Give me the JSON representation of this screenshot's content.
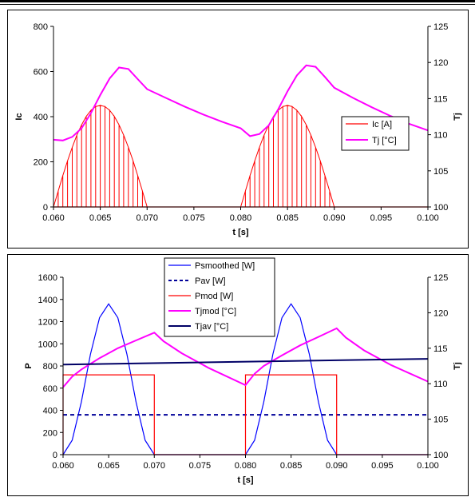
{
  "chart_data": [
    {
      "type": "line",
      "xlabel": "t [s]",
      "ylabel": "Ic",
      "ylabel_right": "Tj",
      "xlim": [
        0.06,
        0.1
      ],
      "ylim": [
        0,
        800
      ],
      "ylim_right": [
        100,
        125
      ],
      "x_ticks": [
        "0.060",
        "0.065",
        "0.070",
        "0.075",
        "0.080",
        "0.085",
        "0.090",
        "0.095",
        "0.100"
      ],
      "y_ticks": [
        "0",
        "200",
        "400",
        "600",
        "800"
      ],
      "y_ticks_right": [
        "100",
        "105",
        "110",
        "115",
        "120",
        "125"
      ],
      "legend": "right",
      "grid": false,
      "series": [
        {
          "name": "Ic [A]",
          "axis": "left",
          "color": "#ff0000",
          "style": "pwm-envelope",
          "conduction_intervals": [
            [
              0.06,
              0.07
            ],
            [
              0.08,
              0.09
            ]
          ],
          "peak_value": 450,
          "pulse_period": 0.0005,
          "x": [
            0.06,
            0.061,
            0.062,
            0.063,
            0.064,
            0.065,
            0.066,
            0.067,
            0.068,
            0.069,
            0.07
          ],
          "values": [
            0,
            140,
            267,
            367,
            431,
            453,
            431,
            367,
            267,
            140,
            0
          ]
        },
        {
          "name": "Tj [°C]",
          "axis": "right",
          "color": "#ff00ff",
          "style": "solid",
          "x": [
            0.06,
            0.061,
            0.062,
            0.063,
            0.064,
            0.065,
            0.066,
            0.067,
            0.068,
            0.069,
            0.07,
            0.072,
            0.074,
            0.076,
            0.078,
            0.08,
            0.081,
            0.082,
            0.083,
            0.084,
            0.085,
            0.086,
            0.087,
            0.088,
            0.089,
            0.09,
            0.092,
            0.094,
            0.096,
            0.098,
            0.1
          ],
          "values": [
            109.3,
            109.2,
            109.7,
            110.9,
            113.0,
            115.5,
            117.8,
            119.3,
            119.1,
            117.7,
            116.3,
            115.1,
            113.9,
            112.8,
            111.8,
            110.9,
            109.8,
            110.1,
            111.3,
            113.5,
            116.0,
            118.2,
            119.6,
            119.4,
            118.0,
            116.5,
            115.1,
            113.8,
            112.6,
            111.5,
            110.6
          ]
        }
      ]
    },
    {
      "type": "line",
      "xlabel": "t [s]",
      "ylabel": "P",
      "ylabel_right": "Tj",
      "xlim": [
        0.06,
        0.1
      ],
      "ylim": [
        0,
        1600
      ],
      "ylim_right": [
        100,
        125
      ],
      "x_ticks": [
        "0.060",
        "0.065",
        "0.070",
        "0.075",
        "0.080",
        "0.085",
        "0.090",
        "0.095",
        "0.100"
      ],
      "y_ticks": [
        "0",
        "200",
        "400",
        "600",
        "800",
        "1000",
        "1200",
        "1400",
        "1600"
      ],
      "y_ticks_right": [
        "100",
        "105",
        "110",
        "115",
        "120",
        "125"
      ],
      "legend": "top-left",
      "grid": false,
      "series": [
        {
          "name": "Psmoothed [W]",
          "axis": "left",
          "color": "#0000ff",
          "style": "solid",
          "x": [
            0.06,
            0.061,
            0.062,
            0.063,
            0.064,
            0.065,
            0.066,
            0.067,
            0.068,
            0.069,
            0.07,
            0.08,
            0.081,
            0.082,
            0.083,
            0.084,
            0.085,
            0.086,
            0.087,
            0.088,
            0.089,
            0.09,
            0.1
          ],
          "values": [
            0,
            130,
            475,
            905,
            1235,
            1360,
            1235,
            905,
            475,
            130,
            0,
            0,
            130,
            475,
            905,
            1235,
            1360,
            1235,
            905,
            475,
            130,
            0,
            0
          ]
        },
        {
          "name": "Pav [W]",
          "axis": "left",
          "color": "#000099",
          "style": "dashed",
          "x": [
            0.06,
            0.1
          ],
          "values": [
            360,
            360
          ]
        },
        {
          "name": "Pmod [W]",
          "axis": "left",
          "color": "#ff0000",
          "style": "solid",
          "x": [
            0.06,
            0.06,
            0.07,
            0.07,
            0.08,
            0.08,
            0.09,
            0.09,
            0.1
          ],
          "values": [
            0,
            720,
            720,
            0,
            0,
            720,
            720,
            0,
            0
          ]
        },
        {
          "name": "Tjmod [°C]",
          "axis": "right",
          "color": "#ff00ff",
          "style": "solid",
          "x": [
            0.06,
            0.061,
            0.062,
            0.064,
            0.066,
            0.068,
            0.07,
            0.071,
            0.073,
            0.076,
            0.08,
            0.081,
            0.082,
            0.084,
            0.086,
            0.088,
            0.09,
            0.091,
            0.093,
            0.096,
            0.1
          ],
          "values": [
            109.5,
            111.0,
            112.0,
            113.6,
            115.0,
            116.1,
            117.2,
            116.0,
            114.3,
            112.2,
            109.8,
            111.4,
            112.5,
            114.0,
            115.4,
            116.6,
            117.8,
            116.5,
            114.7,
            112.6,
            110.3
          ]
        },
        {
          "name": "Tjav [°C]",
          "axis": "right",
          "color": "#000066",
          "style": "solid",
          "x": [
            0.06,
            0.1
          ],
          "values": [
            112.7,
            113.5
          ]
        }
      ]
    }
  ]
}
